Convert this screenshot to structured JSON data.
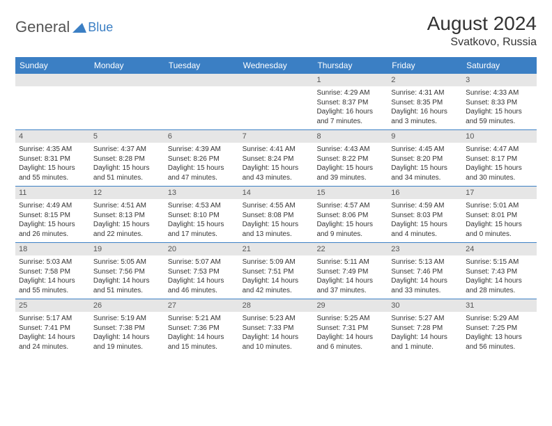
{
  "logo": {
    "text1": "General",
    "text2": "Blue"
  },
  "title": "August 2024",
  "location": "Svatkovo, Russia",
  "day_headers": [
    "Sunday",
    "Monday",
    "Tuesday",
    "Wednesday",
    "Thursday",
    "Friday",
    "Saturday"
  ],
  "colors": {
    "header_bg": "#3b7fc4",
    "header_text": "#ffffff",
    "daynum_bg": "#e6e6e6",
    "week_border": "#3b7fc4",
    "text": "#333333"
  },
  "weeks": [
    [
      {
        "n": "",
        "sr": "",
        "ss": "",
        "dl": ""
      },
      {
        "n": "",
        "sr": "",
        "ss": "",
        "dl": ""
      },
      {
        "n": "",
        "sr": "",
        "ss": "",
        "dl": ""
      },
      {
        "n": "",
        "sr": "",
        "ss": "",
        "dl": ""
      },
      {
        "n": "1",
        "sr": "Sunrise: 4:29 AM",
        "ss": "Sunset: 8:37 PM",
        "dl": "Daylight: 16 hours and 7 minutes."
      },
      {
        "n": "2",
        "sr": "Sunrise: 4:31 AM",
        "ss": "Sunset: 8:35 PM",
        "dl": "Daylight: 16 hours and 3 minutes."
      },
      {
        "n": "3",
        "sr": "Sunrise: 4:33 AM",
        "ss": "Sunset: 8:33 PM",
        "dl": "Daylight: 15 hours and 59 minutes."
      }
    ],
    [
      {
        "n": "4",
        "sr": "Sunrise: 4:35 AM",
        "ss": "Sunset: 8:31 PM",
        "dl": "Daylight: 15 hours and 55 minutes."
      },
      {
        "n": "5",
        "sr": "Sunrise: 4:37 AM",
        "ss": "Sunset: 8:28 PM",
        "dl": "Daylight: 15 hours and 51 minutes."
      },
      {
        "n": "6",
        "sr": "Sunrise: 4:39 AM",
        "ss": "Sunset: 8:26 PM",
        "dl": "Daylight: 15 hours and 47 minutes."
      },
      {
        "n": "7",
        "sr": "Sunrise: 4:41 AM",
        "ss": "Sunset: 8:24 PM",
        "dl": "Daylight: 15 hours and 43 minutes."
      },
      {
        "n": "8",
        "sr": "Sunrise: 4:43 AM",
        "ss": "Sunset: 8:22 PM",
        "dl": "Daylight: 15 hours and 39 minutes."
      },
      {
        "n": "9",
        "sr": "Sunrise: 4:45 AM",
        "ss": "Sunset: 8:20 PM",
        "dl": "Daylight: 15 hours and 34 minutes."
      },
      {
        "n": "10",
        "sr": "Sunrise: 4:47 AM",
        "ss": "Sunset: 8:17 PM",
        "dl": "Daylight: 15 hours and 30 minutes."
      }
    ],
    [
      {
        "n": "11",
        "sr": "Sunrise: 4:49 AM",
        "ss": "Sunset: 8:15 PM",
        "dl": "Daylight: 15 hours and 26 minutes."
      },
      {
        "n": "12",
        "sr": "Sunrise: 4:51 AM",
        "ss": "Sunset: 8:13 PM",
        "dl": "Daylight: 15 hours and 22 minutes."
      },
      {
        "n": "13",
        "sr": "Sunrise: 4:53 AM",
        "ss": "Sunset: 8:10 PM",
        "dl": "Daylight: 15 hours and 17 minutes."
      },
      {
        "n": "14",
        "sr": "Sunrise: 4:55 AM",
        "ss": "Sunset: 8:08 PM",
        "dl": "Daylight: 15 hours and 13 minutes."
      },
      {
        "n": "15",
        "sr": "Sunrise: 4:57 AM",
        "ss": "Sunset: 8:06 PM",
        "dl": "Daylight: 15 hours and 9 minutes."
      },
      {
        "n": "16",
        "sr": "Sunrise: 4:59 AM",
        "ss": "Sunset: 8:03 PM",
        "dl": "Daylight: 15 hours and 4 minutes."
      },
      {
        "n": "17",
        "sr": "Sunrise: 5:01 AM",
        "ss": "Sunset: 8:01 PM",
        "dl": "Daylight: 15 hours and 0 minutes."
      }
    ],
    [
      {
        "n": "18",
        "sr": "Sunrise: 5:03 AM",
        "ss": "Sunset: 7:58 PM",
        "dl": "Daylight: 14 hours and 55 minutes."
      },
      {
        "n": "19",
        "sr": "Sunrise: 5:05 AM",
        "ss": "Sunset: 7:56 PM",
        "dl": "Daylight: 14 hours and 51 minutes."
      },
      {
        "n": "20",
        "sr": "Sunrise: 5:07 AM",
        "ss": "Sunset: 7:53 PM",
        "dl": "Daylight: 14 hours and 46 minutes."
      },
      {
        "n": "21",
        "sr": "Sunrise: 5:09 AM",
        "ss": "Sunset: 7:51 PM",
        "dl": "Daylight: 14 hours and 42 minutes."
      },
      {
        "n": "22",
        "sr": "Sunrise: 5:11 AM",
        "ss": "Sunset: 7:49 PM",
        "dl": "Daylight: 14 hours and 37 minutes."
      },
      {
        "n": "23",
        "sr": "Sunrise: 5:13 AM",
        "ss": "Sunset: 7:46 PM",
        "dl": "Daylight: 14 hours and 33 minutes."
      },
      {
        "n": "24",
        "sr": "Sunrise: 5:15 AM",
        "ss": "Sunset: 7:43 PM",
        "dl": "Daylight: 14 hours and 28 minutes."
      }
    ],
    [
      {
        "n": "25",
        "sr": "Sunrise: 5:17 AM",
        "ss": "Sunset: 7:41 PM",
        "dl": "Daylight: 14 hours and 24 minutes."
      },
      {
        "n": "26",
        "sr": "Sunrise: 5:19 AM",
        "ss": "Sunset: 7:38 PM",
        "dl": "Daylight: 14 hours and 19 minutes."
      },
      {
        "n": "27",
        "sr": "Sunrise: 5:21 AM",
        "ss": "Sunset: 7:36 PM",
        "dl": "Daylight: 14 hours and 15 minutes."
      },
      {
        "n": "28",
        "sr": "Sunrise: 5:23 AM",
        "ss": "Sunset: 7:33 PM",
        "dl": "Daylight: 14 hours and 10 minutes."
      },
      {
        "n": "29",
        "sr": "Sunrise: 5:25 AM",
        "ss": "Sunset: 7:31 PM",
        "dl": "Daylight: 14 hours and 6 minutes."
      },
      {
        "n": "30",
        "sr": "Sunrise: 5:27 AM",
        "ss": "Sunset: 7:28 PM",
        "dl": "Daylight: 14 hours and 1 minute."
      },
      {
        "n": "31",
        "sr": "Sunrise: 5:29 AM",
        "ss": "Sunset: 7:25 PM",
        "dl": "Daylight: 13 hours and 56 minutes."
      }
    ]
  ]
}
